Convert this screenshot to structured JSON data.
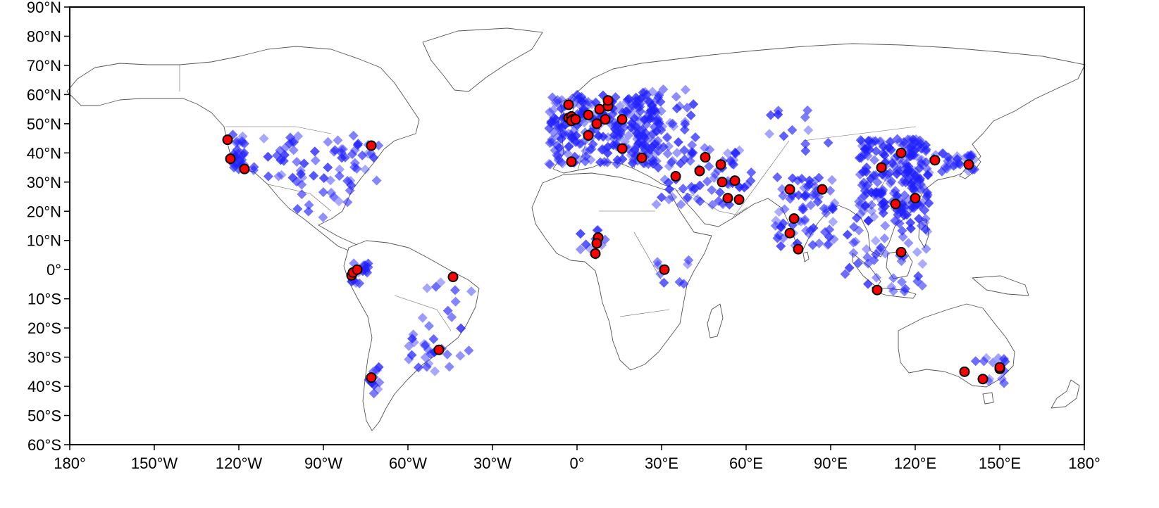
{
  "map": {
    "projection": "equirectangular",
    "lon_range": [
      -180,
      180
    ],
    "lat_range": [
      -60,
      90
    ],
    "marker_colors": {
      "cloud": "#1f1fff",
      "site_fill": "#ff0000",
      "site_stroke": "#000000"
    },
    "lat_ticks": [
      {
        "value": 90,
        "label": "90°N"
      },
      {
        "value": 80,
        "label": "80°N"
      },
      {
        "value": 70,
        "label": "70°N"
      },
      {
        "value": 60,
        "label": "60°N"
      },
      {
        "value": 50,
        "label": "50°N"
      },
      {
        "value": 40,
        "label": "40°N"
      },
      {
        "value": 30,
        "label": "30°N"
      },
      {
        "value": 20,
        "label": "20°N"
      },
      {
        "value": 10,
        "label": "10°N"
      },
      {
        "value": 0,
        "label": "0°"
      },
      {
        "value": -10,
        "label": "10°S"
      },
      {
        "value": -20,
        "label": "20°S"
      },
      {
        "value": -30,
        "label": "30°S"
      },
      {
        "value": -40,
        "label": "40°S"
      },
      {
        "value": -50,
        "label": "50°S"
      },
      {
        "value": -60,
        "label": "60°S"
      }
    ],
    "lon_ticks": [
      {
        "value": -180,
        "label": "180°"
      },
      {
        "value": -150,
        "label": "150°W"
      },
      {
        "value": -120,
        "label": "120°W"
      },
      {
        "value": -90,
        "label": "90°W"
      },
      {
        "value": -60,
        "label": "60°W"
      },
      {
        "value": -30,
        "label": "30°W"
      },
      {
        "value": 0,
        "label": "0°"
      },
      {
        "value": 30,
        "label": "30°E"
      },
      {
        "value": 60,
        "label": "60°E"
      },
      {
        "value": 90,
        "label": "90°E"
      },
      {
        "value": 120,
        "label": "120°E"
      },
      {
        "value": 150,
        "label": "150°E"
      },
      {
        "value": 180,
        "label": "180°"
      }
    ],
    "cloud_clusters": [
      {
        "lon": [
          -123,
          -118
        ],
        "lat": [
          33,
          48
        ],
        "n": 28
      },
      {
        "lon": [
          -115,
          -70
        ],
        "lat": [
          30,
          46
        ],
        "n": 60
      },
      {
        "lon": [
          -100,
          -80
        ],
        "lat": [
          17,
          32
        ],
        "n": 14
      },
      {
        "lon": [
          -80,
          -74
        ],
        "lat": [
          -5,
          4
        ],
        "n": 14
      },
      {
        "lon": [
          -60,
          -36
        ],
        "lat": [
          -30,
          -2
        ],
        "n": 22
      },
      {
        "lon": [
          -74,
          -70
        ],
        "lat": [
          -44,
          -33
        ],
        "n": 12
      },
      {
        "lon": [
          -10,
          30
        ],
        "lat": [
          36,
          60
        ],
        "n": 260
      },
      {
        "lon": [
          20,
          42
        ],
        "lat": [
          42,
          62
        ],
        "n": 50
      },
      {
        "lon": [
          28,
          62
        ],
        "lat": [
          22,
          42
        ],
        "n": 70
      },
      {
        "lon": [
          0,
          10
        ],
        "lat": [
          4,
          14
        ],
        "n": 10
      },
      {
        "lon": [
          28,
          40
        ],
        "lat": [
          -6,
          4
        ],
        "n": 8
      },
      {
        "lon": [
          70,
          92
        ],
        "lat": [
          8,
          32
        ],
        "n": 70
      },
      {
        "lon": [
          100,
          125
        ],
        "lat": [
          20,
          45
        ],
        "n": 200
      },
      {
        "lon": [
          125,
          142
        ],
        "lat": [
          33,
          40
        ],
        "n": 30
      },
      {
        "lon": [
          95,
          125
        ],
        "lat": [
          -8,
          20
        ],
        "n": 60
      },
      {
        "lon": [
          140,
          152
        ],
        "lat": [
          -40,
          -30
        ],
        "n": 12
      },
      {
        "lon": [
          65,
          90
        ],
        "lat": [
          40,
          55
        ],
        "n": 12
      },
      {
        "lon": [
          -60,
          -45
        ],
        "lat": [
          -35,
          -25
        ],
        "n": 14
      }
    ],
    "sites": [
      [
        -124,
        44.5
      ],
      [
        -123,
        38
      ],
      [
        -118,
        34.5
      ],
      [
        -73,
        42.5
      ],
      [
        -80,
        -2
      ],
      [
        -79.5,
        -1
      ],
      [
        -78,
        0
      ],
      [
        -44,
        -2.5
      ],
      [
        -49,
        -27.5
      ],
      [
        -73,
        -37
      ],
      [
        -3,
        56.5
      ],
      [
        -3,
        52
      ],
      [
        -2,
        52.5
      ],
      [
        -1.5,
        51.5
      ],
      [
        -2,
        51
      ],
      [
        -0.5,
        51.5
      ],
      [
        4,
        53
      ],
      [
        4,
        46
      ],
      [
        7,
        50
      ],
      [
        8,
        55
      ],
      [
        10,
        51.5
      ],
      [
        11,
        56
      ],
      [
        11,
        58
      ],
      [
        16,
        51.5
      ],
      [
        -2,
        37
      ],
      [
        16,
        41.5
      ],
      [
        23,
        38.3
      ],
      [
        35,
        32
      ],
      [
        43.5,
        33.8
      ],
      [
        45.5,
        38.5
      ],
      [
        51,
        36
      ],
      [
        51.5,
        30
      ],
      [
        53.5,
        24.5
      ],
      [
        56,
        30.5
      ],
      [
        57.5,
        24
      ],
      [
        7.5,
        11
      ],
      [
        7,
        9
      ],
      [
        6.5,
        5.5
      ],
      [
        31,
        0
      ],
      [
        75.5,
        27.5
      ],
      [
        87,
        27.5
      ],
      [
        77,
        17.5
      ],
      [
        75.5,
        12.5
      ],
      [
        78.5,
        7
      ],
      [
        108,
        35
      ],
      [
        115,
        40
      ],
      [
        113,
        22.5
      ],
      [
        120,
        24.5
      ],
      [
        127,
        37.5
      ],
      [
        139,
        36
      ],
      [
        115,
        6
      ],
      [
        106.5,
        -7
      ],
      [
        137.5,
        -35
      ],
      [
        144,
        -37.5
      ],
      [
        150,
        -34
      ],
      [
        150,
        -33.5
      ]
    ]
  }
}
